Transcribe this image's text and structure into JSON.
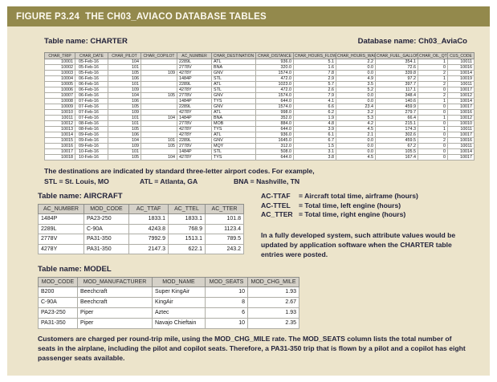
{
  "figure": {
    "label": "FIGURE P3.24",
    "title": "THE CH03_AVIACO DATABASE TABLES"
  },
  "colors": {
    "titlebar_bg": "#93894C",
    "content_bg": "#ECE4CB",
    "table_header_bg": "#D5D1C8"
  },
  "charter": {
    "label": "Table name: CHARTER",
    "database_label": "Database name: Ch03_AviaCo",
    "columns": [
      "CHAR_TRIP",
      "CHAR_DATE",
      "CHAR_PILOT",
      "CHAR_COPILOT",
      "AC_NUMBER",
      "CHAR_DESTINATION",
      "CHAR_DISTANCE",
      "CHAR_HOURS_FLOWN",
      "CHAR_HOURS_WAIT",
      "CHAR_FUEL_GALLONS",
      "CHAR_OIL_QTS",
      "CUS_CODE"
    ],
    "rows": [
      [
        "10001",
        "05-Feb-16",
        "104",
        "",
        "2289L",
        "ATL",
        "936.0",
        "5.1",
        "2.2",
        "354.1",
        "1",
        "10011"
      ],
      [
        "10002",
        "05-Feb-16",
        "101",
        "",
        "2778V",
        "BNA",
        "320.0",
        "1.6",
        "0.0",
        "72.6",
        "0",
        "10016"
      ],
      [
        "10003",
        "05-Feb-16",
        "105",
        "109",
        "4278Y",
        "GNV",
        "1574.0",
        "7.8",
        "0.0",
        "339.8",
        "2",
        "10014"
      ],
      [
        "10004",
        "06-Feb-16",
        "106",
        "",
        "1484P",
        "STL",
        "472.0",
        "2.9",
        "4.9",
        "97.2",
        "1",
        "10019"
      ],
      [
        "10005",
        "06-Feb-16",
        "101",
        "",
        "2289L",
        "ATL",
        "1023.0",
        "5.7",
        "3.5",
        "397.7",
        "2",
        "10011"
      ],
      [
        "10006",
        "06-Feb-16",
        "109",
        "",
        "4278Y",
        "STL",
        "472.0",
        "2.6",
        "5.2",
        "117.1",
        "0",
        "10017"
      ],
      [
        "10007",
        "06-Feb-16",
        "104",
        "105",
        "2778V",
        "GNV",
        "1574.0",
        "7.9",
        "0.0",
        "348.4",
        "2",
        "10012"
      ],
      [
        "10008",
        "07-Feb-16",
        "106",
        "",
        "1484P",
        "TYS",
        "644.0",
        "4.1",
        "0.0",
        "140.6",
        "1",
        "10014"
      ],
      [
        "10009",
        "07-Feb-16",
        "105",
        "",
        "2289L",
        "GNV",
        "1574.0",
        "6.6",
        "23.4",
        "459.9",
        "0",
        "10017"
      ],
      [
        "10010",
        "07-Feb-16",
        "109",
        "",
        "4278Y",
        "ATL",
        "998.0",
        "6.2",
        "3.2",
        "279.7",
        "0",
        "10016"
      ],
      [
        "10011",
        "07-Feb-16",
        "101",
        "104",
        "1484P",
        "BNA",
        "352.0",
        "1.9",
        "5.3",
        "66.4",
        "1",
        "10012"
      ],
      [
        "10012",
        "08-Feb-16",
        "101",
        "",
        "2778V",
        "MOB",
        "884.0",
        "4.8",
        "4.2",
        "215.1",
        "0",
        "10010"
      ],
      [
        "10013",
        "08-Feb-16",
        "105",
        "",
        "4278Y",
        "TYS",
        "644.0",
        "3.9",
        "4.5",
        "174.3",
        "1",
        "10011"
      ],
      [
        "10014",
        "09-Feb-16",
        "106",
        "",
        "4278Y",
        "ATL",
        "936.0",
        "6.1",
        "2.1",
        "302.6",
        "0",
        "10017"
      ],
      [
        "10015",
        "09-Feb-16",
        "104",
        "101",
        "2289L",
        "GNV",
        "1645.0",
        "6.7",
        "0.0",
        "459.5",
        "2",
        "10016"
      ],
      [
        "10016",
        "09-Feb-16",
        "109",
        "105",
        "2778V",
        "MQY",
        "312.0",
        "1.5",
        "0.0",
        "67.2",
        "0",
        "10011"
      ],
      [
        "10017",
        "10-Feb-16",
        "101",
        "",
        "1484P",
        "STL",
        "508.0",
        "3.1",
        "0.0",
        "105.5",
        "0",
        "10014"
      ],
      [
        "10018",
        "10-Feb-16",
        "105",
        "104",
        "4278Y",
        "TYS",
        "644.0",
        "3.8",
        "4.5",
        "167.4",
        "0",
        "10017"
      ]
    ]
  },
  "destinations_note": {
    "line1": "The destinations are indicated by standard three-letter airport codes. For example,",
    "codes": [
      "STL = St. Louis, MO",
      "ATL = Atlanta, GA",
      "BNA = Nashville, TN"
    ]
  },
  "aircraft": {
    "label": "Table name: AIRCRAFT",
    "columns": [
      "AC_NUMBER",
      "MOD_CODE",
      "AC_TTAF",
      "AC_TTEL",
      "AC_TTER"
    ],
    "rows": [
      [
        "1484P",
        "PA23-250",
        "1833.1",
        "1833.1",
        "101.8"
      ],
      [
        "2289L",
        "C-90A",
        "4243.8",
        "768.9",
        "1123.4"
      ],
      [
        "2778V",
        "PA31-350",
        "7992.9",
        "1513.1",
        "789.5"
      ],
      [
        "4278Y",
        "PA31-350",
        "2147.3",
        "622.1",
        "243.2"
      ]
    ],
    "legend": [
      {
        "term": "AC-TTAF",
        "def": "= Aircraft total time, airframe (hours)"
      },
      {
        "term": "AC-TTEL",
        "def": "= Total time, left engine (hours)"
      },
      {
        "term": "AC_TTER",
        "def": "= Total time, right engine (hours)"
      }
    ],
    "note": "In a fully developed system, such attribute values would be updated by application software when the CHARTER table entries were posted."
  },
  "model": {
    "label": "Table name: MODEL",
    "columns": [
      "MOD_CODE",
      "MOD_MANUFACTURER",
      "MOD_NAME",
      "MOD_SEATS",
      "MOD_CHG_MILE"
    ],
    "rows": [
      [
        "B200",
        "Beechcraft",
        "Super KingAir",
        "10",
        "1.93"
      ],
      [
        "C-90A",
        "Beechcraft",
        "KingAir",
        "8",
        "2.67"
      ],
      [
        "PA23-250",
        "Piper",
        "Aztec",
        "6",
        "1.93"
      ],
      [
        "PA31-350",
        "Piper",
        "Navajo Chieftain",
        "10",
        "2.35"
      ]
    ]
  },
  "footer_note": "Customers are charged per round-trip mile, using the MOD_CHG_MILE rate. The MOD_SEATS column lists the total number of seats in the airplane, including the pilot and copilot seats. Therefore, a PA31-350 trip that is flown by a pilot and a copilot has eight passenger seats available."
}
